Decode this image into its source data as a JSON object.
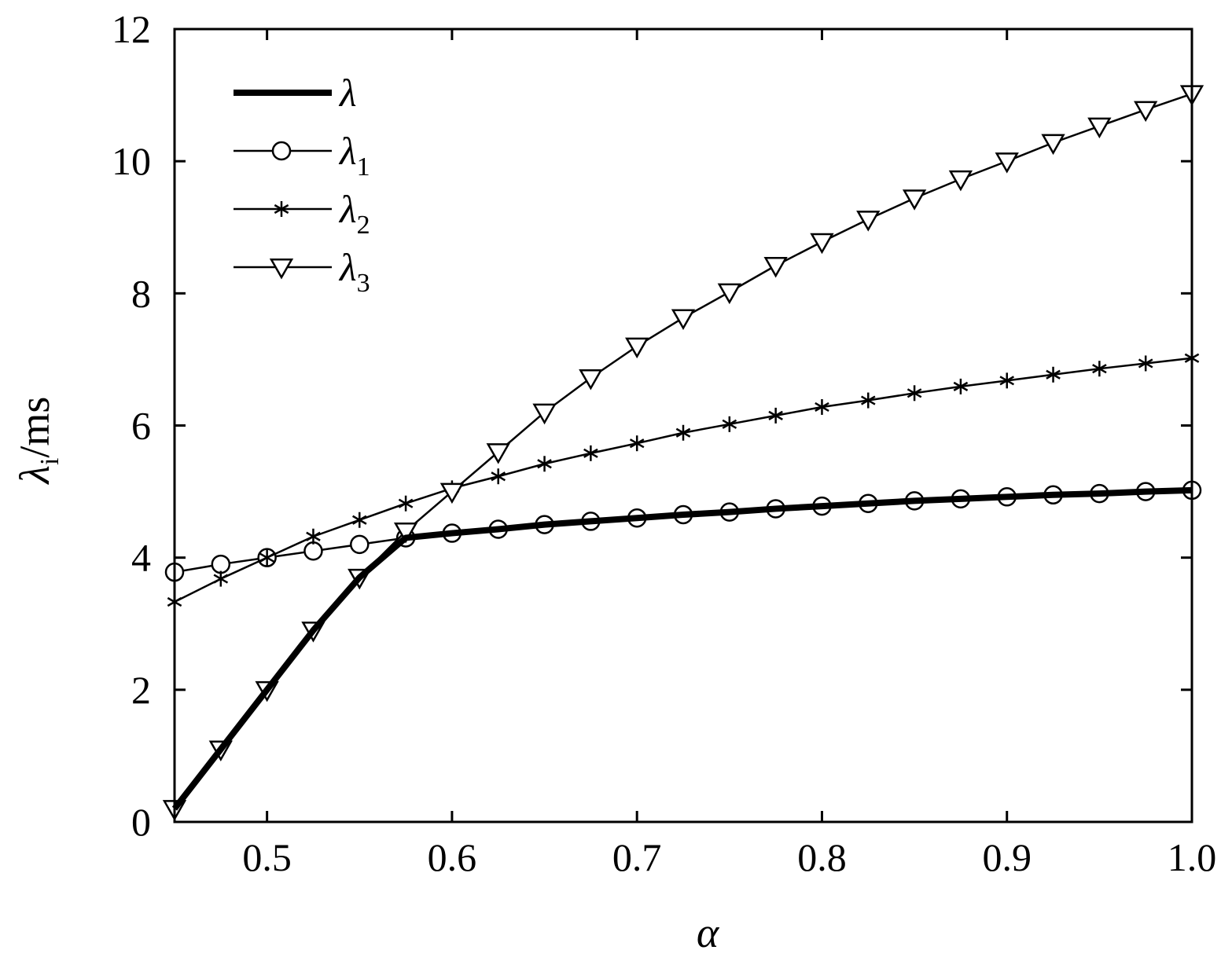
{
  "chart_data": {
    "type": "line",
    "xlabel": "α",
    "ylabel_main": "λ",
    "ylabel_sub": "i",
    "ylabel_unit": "/ms",
    "xlim": [
      0.45,
      1.0
    ],
    "ylim": [
      0,
      12
    ],
    "xticks": [
      "0.5",
      "0.6",
      "0.7",
      "0.8",
      "0.9",
      "1.0"
    ],
    "yticks": [
      "0",
      "2",
      "4",
      "6",
      "8",
      "10",
      "12"
    ],
    "grid": false,
    "legend_position": "top-left",
    "x": [
      0.45,
      0.475,
      0.5,
      0.525,
      0.55,
      0.575,
      0.6,
      0.625,
      0.65,
      0.675,
      0.7,
      0.725,
      0.75,
      0.775,
      0.8,
      0.825,
      0.85,
      0.875,
      0.9,
      0.925,
      0.95,
      0.975,
      1.0
    ],
    "series": [
      {
        "name": "λ",
        "name_main": "λ",
        "name_sub": "",
        "marker": "none",
        "style": "thick",
        "values": [
          0.2,
          1.1,
          2.0,
          2.9,
          3.7,
          4.3,
          4.37,
          4.43,
          4.5,
          4.55,
          4.6,
          4.65,
          4.69,
          4.74,
          4.78,
          4.82,
          4.86,
          4.89,
          4.92,
          4.95,
          4.97,
          5.0,
          5.02
        ]
      },
      {
        "name": "λ1",
        "name_main": "λ",
        "name_sub": "1",
        "marker": "circle",
        "style": "thin",
        "values": [
          3.78,
          3.9,
          4.0,
          4.1,
          4.2,
          4.3,
          4.37,
          4.43,
          4.5,
          4.55,
          4.6,
          4.65,
          4.69,
          4.74,
          4.78,
          4.82,
          4.86,
          4.89,
          4.92,
          4.95,
          4.97,
          5.0,
          5.02
        ]
      },
      {
        "name": "λ2",
        "name_main": "λ",
        "name_sub": "2",
        "marker": "asterisk",
        "style": "thin",
        "values": [
          3.33,
          3.68,
          4.0,
          4.32,
          4.57,
          4.82,
          5.05,
          5.23,
          5.42,
          5.58,
          5.73,
          5.89,
          6.02,
          6.15,
          6.28,
          6.38,
          6.49,
          6.59,
          6.68,
          6.77,
          6.86,
          6.94,
          7.02
        ]
      },
      {
        "name": "λ3",
        "name_main": "λ",
        "name_sub": "3",
        "marker": "triangle-down",
        "style": "thin",
        "values": [
          0.2,
          1.1,
          2.0,
          2.9,
          3.7,
          4.4,
          5.0,
          5.6,
          6.2,
          6.72,
          7.2,
          7.63,
          8.02,
          8.42,
          8.78,
          9.12,
          9.44,
          9.73,
          10.0,
          10.28,
          10.53,
          10.78,
          11.02
        ]
      }
    ]
  }
}
